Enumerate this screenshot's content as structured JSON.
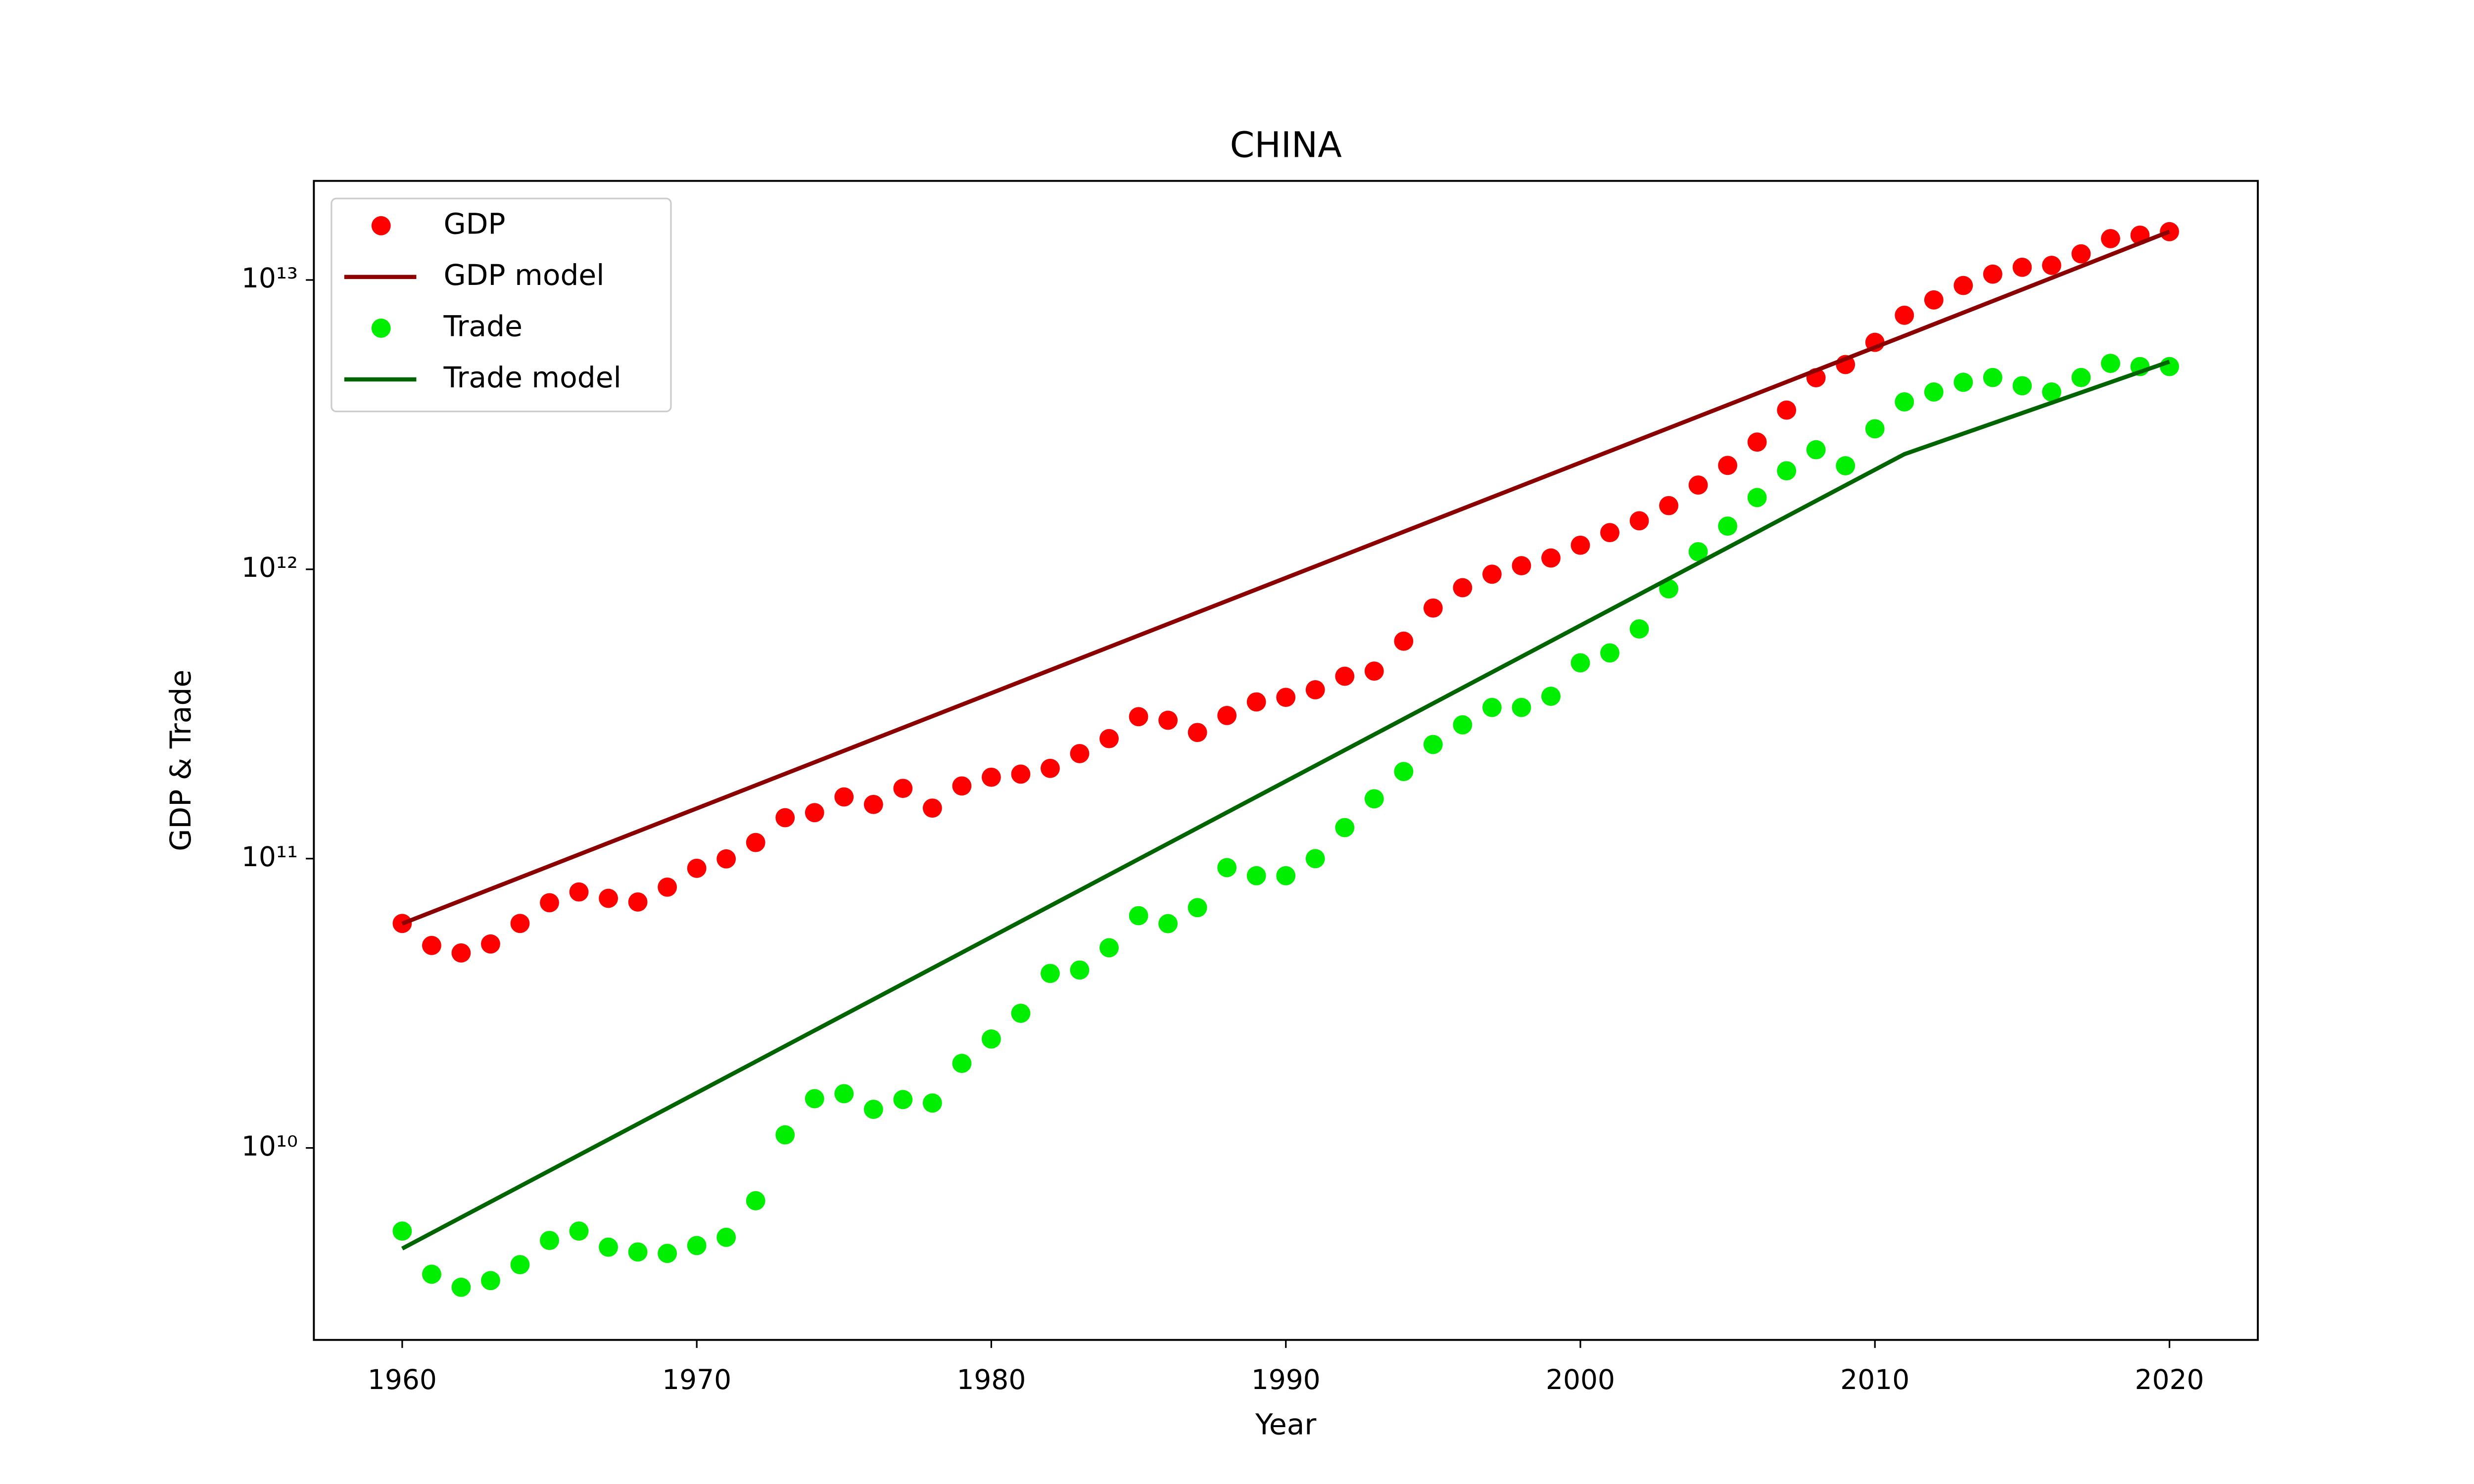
{
  "chart_data": {
    "type": "scatter",
    "title": "CHINA",
    "x_label": "Year",
    "y_label": "GDP & Trade",
    "y_scale": "log",
    "legend": "upper left",
    "xlim": [
      1957,
      2023
    ],
    "ylim": [
      2170000000.0,
      22000000000000.0
    ],
    "xticks": [
      1960,
      1970,
      1980,
      1990,
      2000,
      2010,
      2020
    ],
    "yticks": [
      {
        "value": 10000000000.0,
        "label": "10¹⁰"
      },
      {
        "value": 100000000000.0,
        "label": "10¹¹"
      },
      {
        "value": 1000000000000.0,
        "label": "10¹²"
      },
      {
        "value": 10000000000000.0,
        "label": "10¹³"
      }
    ],
    "x": [
      1960,
      1961,
      1962,
      1963,
      1964,
      1965,
      1966,
      1967,
      1968,
      1969,
      1970,
      1971,
      1972,
      1973,
      1974,
      1975,
      1976,
      1977,
      1978,
      1979,
      1980,
      1981,
      1982,
      1983,
      1984,
      1985,
      1986,
      1987,
      1988,
      1989,
      1990,
      1991,
      1992,
      1993,
      1994,
      1995,
      1996,
      1997,
      1998,
      1999,
      2000,
      2001,
      2002,
      2003,
      2004,
      2005,
      2006,
      2007,
      2008,
      2009,
      2010,
      2011,
      2012,
      2013,
      2014,
      2015,
      2016,
      2017,
      2018,
      2019,
      2020
    ],
    "series": [
      {
        "name": "GDP",
        "style": "marker",
        "color": "#ff0000",
        "values": [
          59700000000.0,
          50100000000.0,
          47200000000.0,
          50700000000.0,
          59700000000.0,
          70400000000.0,
          76700000000.0,
          72900000000.0,
          70800000000.0,
          79700000000.0,
          92600000000.0,
          99800000000.0,
          113700000000.0,
          138500000000.0,
          144200000000.0,
          163400000000.0,
          153900000000.0,
          174900000000.0,
          149500000000.0,
          178300000000.0,
          191100000000.0,
          195900000000.0,
          205100000000.0,
          230700000000.0,
          259900000000.0,
          309500000000.0,
          300800000000.0,
          272900000000.0,
          312400000000.0,
          348000000000.0,
          360900000000.0,
          383400000000.0,
          426900000000.0,
          444700000000.0,
          564300000000.0,
          734500000000.0,
          863700000000.0,
          961600000000.0,
          1029000000000.0,
          1094000000000.0,
          1211000000000.0,
          1339000000000.0,
          1471000000000.0,
          1660000000000.0,
          1955000000000.0,
          2286000000000.0,
          2752000000000.0,
          3550000000000.0,
          4594000000000.0,
          5102000000000.0,
          6087000000000.0,
          7552000000000.0,
          8532000000000.0,
          9570000000000.0,
          10476000000000.0,
          11062000000000.0,
          11233000000000.0,
          12310000000000.0,
          13895000000000.0,
          14280000000000.0,
          14688000000000.0
        ]
      },
      {
        "name": "GDP model",
        "style": "line",
        "color": "#8b0000",
        "x": [
          1960,
          2011,
          2020
        ],
        "values": [
          59600000000.0,
          6410000000000.0,
          14700000000000.0
        ]
      },
      {
        "name": "Trade",
        "style": "marker",
        "color": "#00ee00",
        "values": [
          5160000000.0,
          3660000000.0,
          3300000000.0,
          3480000000.0,
          3950000000.0,
          4790000000.0,
          5160000000.0,
          4540000000.0,
          4370000000.0,
          4320000000.0,
          4600000000.0,
          4910000000.0,
          6570000000.0,
          11100000000.0,
          14800000000.0,
          15400000000.0,
          13600000000.0,
          14700000000.0,
          14300000000.0,
          19600000000.0,
          23800000000.0,
          29200000000.0,
          40100000000.0,
          41200000000.0,
          49200000000.0,
          63500000000.0,
          59600000000.0,
          67700000000.0,
          93100000000.0,
          87300000000.0,
          87300000000.0,
          100000000000.0,
          128000000000.0,
          161000000000.0,
          200000000000.0,
          248000000000.0,
          290000000000.0,
          333000000000.0,
          333000000000.0,
          364000000000.0,
          475000000000.0,
          514000000000.0,
          622000000000.0,
          856000000000.0,
          1150000000000.0,
          1410000000000.0,
          1770000000000.0,
          2190000000000.0,
          2590000000000.0,
          2280000000000.0,
          3060000000000.0,
          3790000000000.0,
          4100000000000.0,
          4430000000000.0,
          4600000000000.0,
          4310000000000.0,
          4100000000000.0,
          4600000000000.0,
          5150000000000.0,
          5020000000000.0,
          5020000000000.0
        ]
      },
      {
        "name": "Trade model",
        "style": "line",
        "color": "#006400",
        "x": [
          1960,
          2011,
          2020
        ],
        "values": [
          4490000000.0,
          2500000000000.0,
          5220000000000.0
        ]
      }
    ]
  }
}
